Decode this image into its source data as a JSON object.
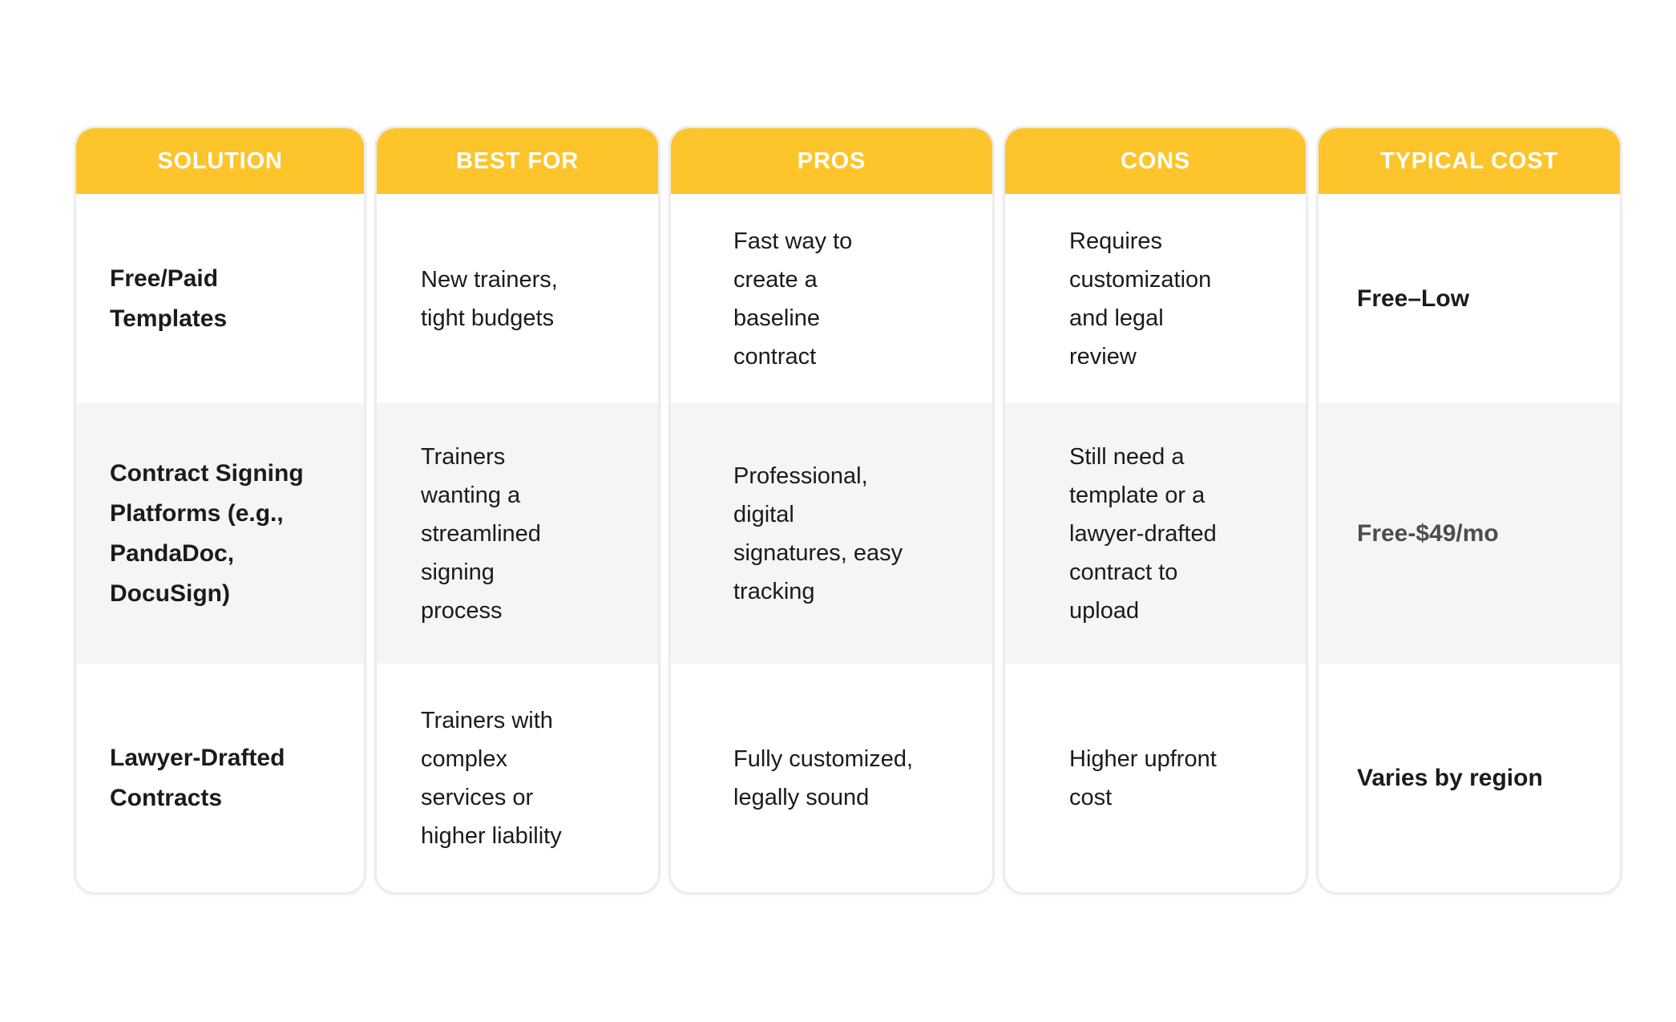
{
  "colors": {
    "header_bg": "#fdc52b",
    "header_text": "#ffffff",
    "row_alt_bg": "#f5f5f6",
    "card_border": "#ececec",
    "body_text": "#1b1b1d",
    "muted_cost_text": "#4d4d4f",
    "page_bg": "#ffffff"
  },
  "chart_data": {
    "type": "table",
    "title": "",
    "columns": [
      "SOLUTION",
      "BEST FOR",
      "PROS",
      "CONS",
      "TYPICAL COST"
    ],
    "rows": [
      [
        "Free/Paid Templates",
        "New trainers, tight budgets",
        "Fast way to create a baseline contract",
        "Requires customization and legal review",
        "Free–Low"
      ],
      [
        "Contract Signing Platforms (e.g., PandaDoc, DocuSign)",
        "Trainers wanting a streamlined signing process",
        "Professional, digital signatures, easy tracking",
        "Still need a template or a lawyer-drafted contract to upload",
        "Free-$49/mo"
      ],
      [
        "Lawyer-Drafted Contracts",
        "Trainers with complex services or higher liability",
        "Fully customized, legally sound",
        "Higher upfront cost",
        "Varies by region"
      ]
    ]
  },
  "table": {
    "columns": [
      {
        "header": "SOLUTION",
        "cells": [
          "Free/Paid\nTemplates",
          "Contract Signing\nPlatforms (e.g.,\nPandaDoc,\nDocuSign)",
          "Lawyer-Drafted\nContracts"
        ]
      },
      {
        "header": "BEST FOR",
        "cells": [
          "New trainers,\ntight budgets",
          "Trainers\nwanting a\nstreamlined\nsigning\nprocess",
          "Trainers with\ncomplex\nservices or\nhigher liability"
        ]
      },
      {
        "header": "PROS",
        "cells": [
          "Fast way to\ncreate a\nbaseline\ncontract",
          "Professional,\ndigital\nsignatures, easy\ntracking",
          "Fully customized,\nlegally sound"
        ]
      },
      {
        "header": "CONS",
        "cells": [
          "Requires\ncustomization\nand legal\nreview",
          "Still need a\ntemplate or a\nlawyer-drafted\ncontract to\nupload",
          "Higher upfront\ncost"
        ]
      },
      {
        "header": "TYPICAL COST",
        "cells": [
          "Free–Low",
          "Free-$49/mo",
          "Varies by region"
        ]
      }
    ]
  }
}
